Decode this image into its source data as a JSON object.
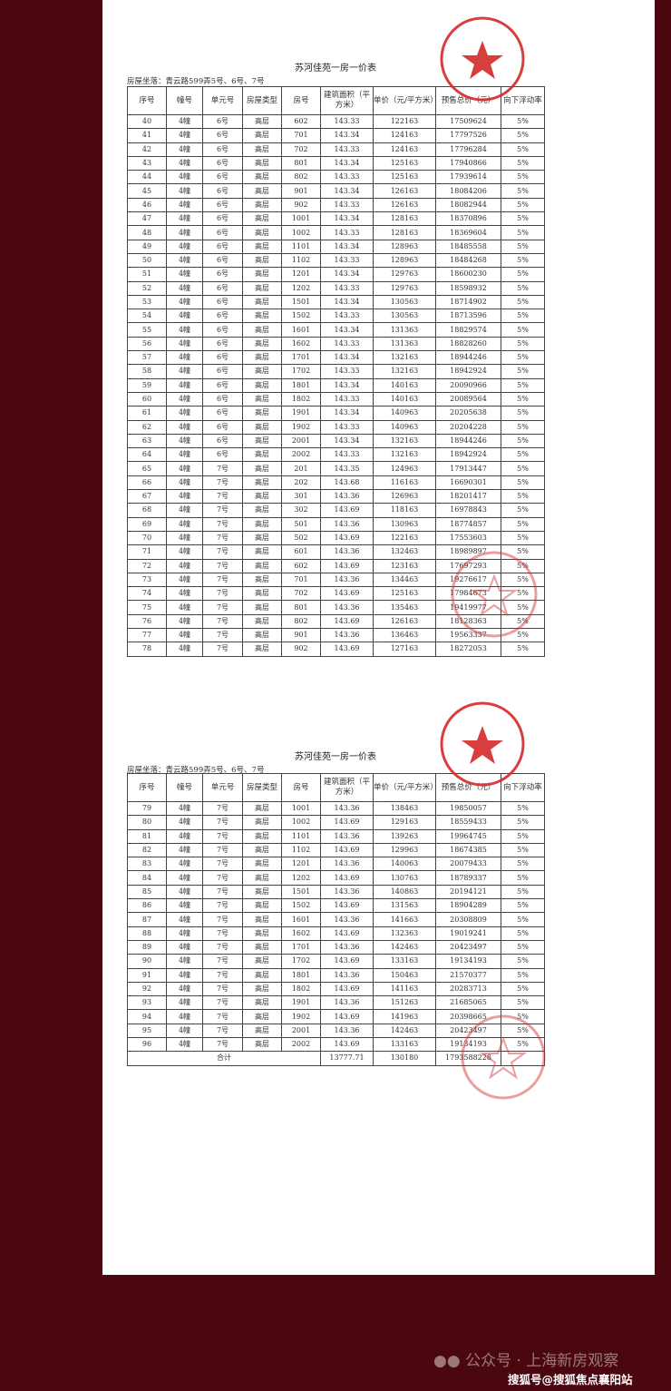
{
  "title": "苏河佳苑一房一价表",
  "location": "房屋坐落：青云路599弄5号、6号、7号",
  "headers": [
    "序号",
    "幢号",
    "单元号",
    "房屋类型",
    "房号",
    "建筑面积（平方米）",
    "单价（元/平方米）",
    "预售总价（元）",
    "向下浮动率"
  ],
  "table1": [
    [
      "40",
      "4幢",
      "6号",
      "高层",
      "602",
      "143.33",
      "122163",
      "17509624",
      "5%"
    ],
    [
      "41",
      "4幢",
      "6号",
      "高层",
      "701",
      "143.34",
      "124163",
      "17797526",
      "5%"
    ],
    [
      "42",
      "4幢",
      "6号",
      "高层",
      "702",
      "143.33",
      "124163",
      "17796284",
      "5%"
    ],
    [
      "43",
      "4幢",
      "6号",
      "高层",
      "801",
      "143.34",
      "125163",
      "17940866",
      "5%"
    ],
    [
      "44",
      "4幢",
      "6号",
      "高层",
      "802",
      "143.33",
      "125163",
      "17939614",
      "5%"
    ],
    [
      "45",
      "4幢",
      "6号",
      "高层",
      "901",
      "143.34",
      "126163",
      "18084206",
      "5%"
    ],
    [
      "46",
      "4幢",
      "6号",
      "高层",
      "902",
      "143.33",
      "126163",
      "18082944",
      "5%"
    ],
    [
      "47",
      "4幢",
      "6号",
      "高层",
      "1001",
      "143.34",
      "128163",
      "18370896",
      "5%"
    ],
    [
      "48",
      "4幢",
      "6号",
      "高层",
      "1002",
      "143.33",
      "128163",
      "18369604",
      "5%"
    ],
    [
      "49",
      "4幢",
      "6号",
      "高层",
      "1101",
      "143.34",
      "128963",
      "18485558",
      "5%"
    ],
    [
      "50",
      "4幢",
      "6号",
      "高层",
      "1102",
      "143.33",
      "128963",
      "18484268",
      "5%"
    ],
    [
      "51",
      "4幢",
      "6号",
      "高层",
      "1201",
      "143.34",
      "129763",
      "18600230",
      "5%"
    ],
    [
      "52",
      "4幢",
      "6号",
      "高层",
      "1202",
      "143.33",
      "129763",
      "18598932",
      "5%"
    ],
    [
      "53",
      "4幢",
      "6号",
      "高层",
      "1501",
      "143.34",
      "130563",
      "18714902",
      "5%"
    ],
    [
      "54",
      "4幢",
      "6号",
      "高层",
      "1502",
      "143.33",
      "130563",
      "18713596",
      "5%"
    ],
    [
      "55",
      "4幢",
      "6号",
      "高层",
      "1601",
      "143.34",
      "131363",
      "18829574",
      "5%"
    ],
    [
      "56",
      "4幢",
      "6号",
      "高层",
      "1602",
      "143.33",
      "131363",
      "18828260",
      "5%"
    ],
    [
      "57",
      "4幢",
      "6号",
      "高层",
      "1701",
      "143.34",
      "132163",
      "18944246",
      "5%"
    ],
    [
      "58",
      "4幢",
      "6号",
      "高层",
      "1702",
      "143.33",
      "132163",
      "18942924",
      "5%"
    ],
    [
      "59",
      "4幢",
      "6号",
      "高层",
      "1801",
      "143.34",
      "140163",
      "20090966",
      "5%"
    ],
    [
      "60",
      "4幢",
      "6号",
      "高层",
      "1802",
      "143.33",
      "140163",
      "20089564",
      "5%"
    ],
    [
      "61",
      "4幢",
      "6号",
      "高层",
      "1901",
      "143.34",
      "140963",
      "20205638",
      "5%"
    ],
    [
      "62",
      "4幢",
      "6号",
      "高层",
      "1902",
      "143.33",
      "140963",
      "20204228",
      "5%"
    ],
    [
      "63",
      "4幢",
      "6号",
      "高层",
      "2001",
      "143.34",
      "132163",
      "18944246",
      "5%"
    ],
    [
      "64",
      "4幢",
      "6号",
      "高层",
      "2002",
      "143.33",
      "132163",
      "18942924",
      "5%"
    ],
    [
      "65",
      "4幢",
      "7号",
      "高层",
      "201",
      "143.35",
      "124963",
      "17913447",
      "5%"
    ],
    [
      "66",
      "4幢",
      "7号",
      "高层",
      "202",
      "143.68",
      "116163",
      "16690301",
      "5%"
    ],
    [
      "67",
      "4幢",
      "7号",
      "高层",
      "301",
      "143.36",
      "126963",
      "18201417",
      "5%"
    ],
    [
      "68",
      "4幢",
      "7号",
      "高层",
      "302",
      "143.69",
      "118163",
      "16978843",
      "5%"
    ],
    [
      "69",
      "4幢",
      "7号",
      "高层",
      "501",
      "143.36",
      "130963",
      "18774857",
      "5%"
    ],
    [
      "70",
      "4幢",
      "7号",
      "高层",
      "502",
      "143.69",
      "122163",
      "17553603",
      "5%"
    ],
    [
      "71",
      "4幢",
      "7号",
      "高层",
      "601",
      "143.36",
      "132463",
      "18989897",
      "5%"
    ],
    [
      "72",
      "4幢",
      "7号",
      "高层",
      "602",
      "143.69",
      "123163",
      "17697293",
      "5%"
    ],
    [
      "73",
      "4幢",
      "7号",
      "高层",
      "701",
      "143.36",
      "134463",
      "19276617",
      "5%"
    ],
    [
      "74",
      "4幢",
      "7号",
      "高层",
      "702",
      "143.69",
      "125163",
      "17984673",
      "5%"
    ],
    [
      "75",
      "4幢",
      "7号",
      "高层",
      "801",
      "143.36",
      "135463",
      "19419977",
      "5%"
    ],
    [
      "76",
      "4幢",
      "7号",
      "高层",
      "802",
      "143.69",
      "126163",
      "18128363",
      "5%"
    ],
    [
      "77",
      "4幢",
      "7号",
      "高层",
      "901",
      "143.36",
      "136463",
      "19563337",
      "5%"
    ],
    [
      "78",
      "4幢",
      "7号",
      "高层",
      "902",
      "143.69",
      "127163",
      "18272053",
      "5%"
    ]
  ],
  "table2": [
    [
      "79",
      "4幢",
      "7号",
      "高层",
      "1001",
      "143.36",
      "138463",
      "19850057",
      "5%"
    ],
    [
      "80",
      "4幢",
      "7号",
      "高层",
      "1002",
      "143.69",
      "129163",
      "18559433",
      "5%"
    ],
    [
      "81",
      "4幢",
      "7号",
      "高层",
      "1101",
      "143.36",
      "139263",
      "19964745",
      "5%"
    ],
    [
      "82",
      "4幢",
      "7号",
      "高层",
      "1102",
      "143.69",
      "129963",
      "18674385",
      "5%"
    ],
    [
      "83",
      "4幢",
      "7号",
      "高层",
      "1201",
      "143.36",
      "140063",
      "20079433",
      "5%"
    ],
    [
      "84",
      "4幢",
      "7号",
      "高层",
      "1202",
      "143.69",
      "130763",
      "18789337",
      "5%"
    ],
    [
      "85",
      "4幢",
      "7号",
      "高层",
      "1501",
      "143.36",
      "140863",
      "20194121",
      "5%"
    ],
    [
      "86",
      "4幢",
      "7号",
      "高层",
      "1502",
      "143.69",
      "131563",
      "18904289",
      "5%"
    ],
    [
      "87",
      "4幢",
      "7号",
      "高层",
      "1601",
      "143.36",
      "141663",
      "20308809",
      "5%"
    ],
    [
      "88",
      "4幢",
      "7号",
      "高层",
      "1602",
      "143.69",
      "132363",
      "19019241",
      "5%"
    ],
    [
      "89",
      "4幢",
      "7号",
      "高层",
      "1701",
      "143.36",
      "142463",
      "20423497",
      "5%"
    ],
    [
      "90",
      "4幢",
      "7号",
      "高层",
      "1702",
      "143.69",
      "133163",
      "19134193",
      "5%"
    ],
    [
      "91",
      "4幢",
      "7号",
      "高层",
      "1801",
      "143.36",
      "150463",
      "21570377",
      "5%"
    ],
    [
      "92",
      "4幢",
      "7号",
      "高层",
      "1802",
      "143.69",
      "141163",
      "20283713",
      "5%"
    ],
    [
      "93",
      "4幢",
      "7号",
      "高层",
      "1901",
      "143.36",
      "151263",
      "21685065",
      "5%"
    ],
    [
      "94",
      "4幢",
      "7号",
      "高层",
      "1902",
      "143.69",
      "141963",
      "20398665",
      "5%"
    ],
    [
      "95",
      "4幢",
      "7号",
      "高层",
      "2001",
      "143.36",
      "142463",
      "20423497",
      "5%"
    ],
    [
      "96",
      "4幢",
      "7号",
      "高层",
      "2002",
      "143.69",
      "133163",
      "19134193",
      "5%"
    ]
  ],
  "total": {
    "label": "合计",
    "area": "13777.71",
    "unit_price": "130180",
    "total_price": "1793588228"
  },
  "stamp_text": "上海苏河湾北部房地产开发有限公司",
  "watermark": {
    "wechat_icon": "wechat-icon",
    "text": "公众号 · 上海新房观察",
    "sohu": "搜狐号@搜狐焦点襄阳站"
  },
  "colors": {
    "background": "#4a0710",
    "stamp": "#d42a2a"
  }
}
